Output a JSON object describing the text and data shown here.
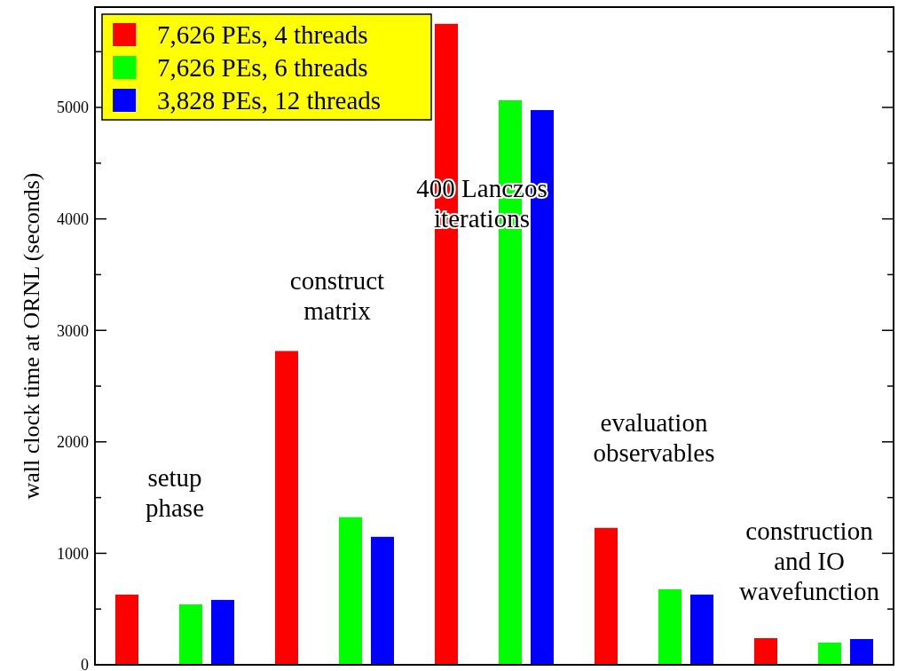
{
  "chart_data": {
    "type": "bar",
    "ylabel": "wall clock time at ORNL (seconds)",
    "categories": [
      "setup\nphase",
      "construct\nmatrix",
      "400 Lanczos\niterations",
      "evaluation\nobservables",
      "construction\nand IO\nwavefunction"
    ],
    "series": [
      {
        "name": "7,626 PEs, 4 threads",
        "color": "#ff0000",
        "values": [
          630,
          2815,
          5750,
          1228,
          239
        ]
      },
      {
        "name": "7,626 PEs, 6 threads",
        "color": "#00ff00",
        "values": [
          542,
          1324,
          5064,
          678,
          199
        ]
      },
      {
        "name": "3,828 PEs, 12 threads",
        "color": "#0000ff",
        "values": [
          582,
          1148,
          4976,
          630,
          231
        ]
      }
    ],
    "ylim": [
      0,
      5900
    ],
    "yticks": [
      0,
      {
        "value": 500,
        "label": null
      },
      1000,
      {
        "value": 1500,
        "label": null
      },
      2000,
      {
        "value": 2500,
        "label": null
      },
      3000,
      {
        "value": 3500,
        "label": null
      },
      4000,
      {
        "value": 4500,
        "label": null
      },
      5000,
      {
        "value": 5500,
        "label": null
      }
    ],
    "legend": "top left",
    "grid": false
  }
}
